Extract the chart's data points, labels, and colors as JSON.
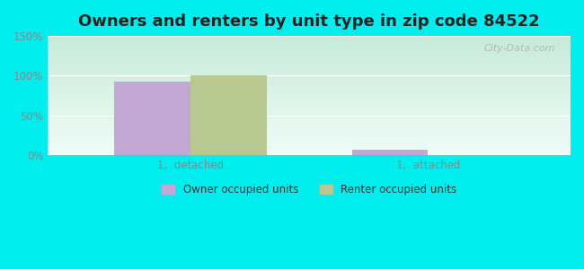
{
  "title": "Owners and renters by unit type in zip code 84522",
  "categories": [
    "1,  detached",
    "1,  attached"
  ],
  "owner_values": [
    93,
    7
  ],
  "renter_values": [
    100,
    0
  ],
  "owner_color": "#c4a8d4",
  "renter_color": "#b8c890",
  "owner_label": "Owner occupied units",
  "renter_label": "Renter occupied units",
  "ylim": [
    0,
    150
  ],
  "yticks": [
    0,
    50,
    100,
    150
  ],
  "ytick_labels": [
    "0%",
    "50%",
    "100%",
    "150%"
  ],
  "background_outer": "#00EEEE",
  "bar_width": 0.32,
  "title_fontsize": 13,
  "watermark": "City-Data.com",
  "grid_color": "#ffffff",
  "tick_color": "#888888"
}
